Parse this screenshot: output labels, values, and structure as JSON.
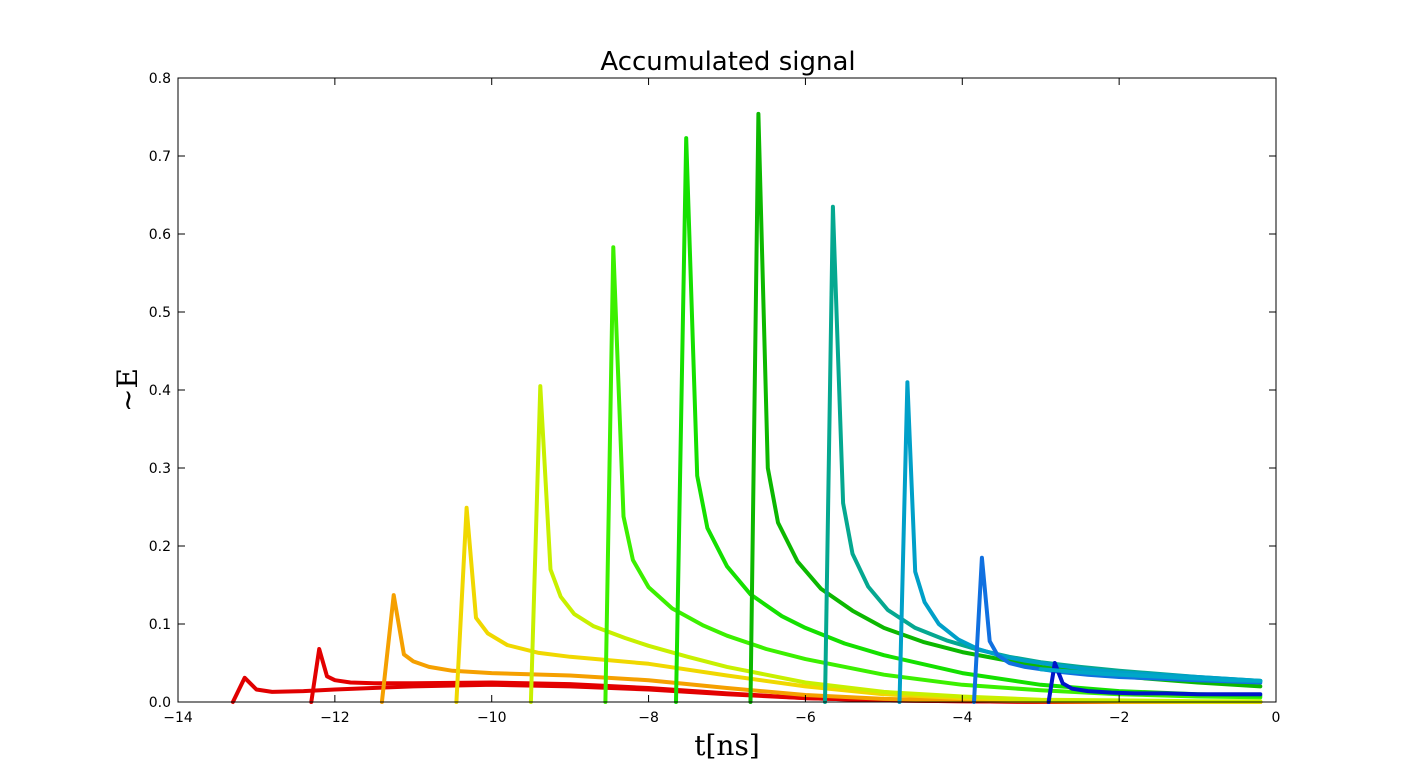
{
  "chart_data": {
    "type": "line",
    "title": "Accumulated signal",
    "xlabel": "t[ns]",
    "ylabel": "~E",
    "xlim": [
      -14,
      0
    ],
    "ylim": [
      0,
      0.8
    ],
    "grid": false,
    "x_ticks": [
      "−14",
      "−12",
      "−10",
      "−8",
      "−6",
      "−4",
      "−2",
      "0"
    ],
    "y_ticks": [
      "0.0",
      "0.1",
      "0.2",
      "0.3",
      "0.4",
      "0.5",
      "0.6",
      "0.7",
      "0.8"
    ],
    "series": [
      {
        "color": "#e00000",
        "x": [
          -13.3,
          -13.15,
          -13.0,
          -12.8,
          -12.4,
          -12.0,
          -11.0,
          -10.0,
          -9.0,
          -8.0,
          -7.0,
          -6.0,
          -5.0,
          -4.0,
          -3.0,
          -2.0,
          -1.0,
          -0.2
        ],
        "y": [
          0.0,
          0.031,
          0.016,
          0.013,
          0.014,
          0.016,
          0.02,
          0.022,
          0.02,
          0.016,
          0.01,
          0.005,
          0.002,
          0.001,
          0.0,
          0.0,
          0.0,
          0.0
        ]
      },
      {
        "color": "#e30000",
        "x": [
          -12.3,
          -12.2,
          -12.1,
          -12.0,
          -11.8,
          -11.5,
          -11.0,
          -10.0,
          -9.0,
          -8.0,
          -7.0,
          -6.0,
          -5.0,
          -4.0,
          -3.0,
          -2.0,
          -1.0,
          -0.2
        ],
        "y": [
          0.0,
          0.068,
          0.033,
          0.028,
          0.025,
          0.024,
          0.024,
          0.025,
          0.023,
          0.018,
          0.011,
          0.005,
          0.002,
          0.001,
          0.0,
          0.0,
          0.0,
          0.0
        ]
      },
      {
        "color": "#f5a000",
        "x": [
          -11.4,
          -11.25,
          -11.12,
          -11.0,
          -10.8,
          -10.5,
          -10.0,
          -9.0,
          -8.0,
          -7.0,
          -6.0,
          -5.0,
          -4.0,
          -3.0,
          -2.0,
          -1.0,
          -0.2
        ],
        "y": [
          0.0,
          0.137,
          0.061,
          0.052,
          0.045,
          0.04,
          0.037,
          0.034,
          0.028,
          0.018,
          0.009,
          0.004,
          0.002,
          0.001,
          0.0,
          0.0,
          0.0
        ]
      },
      {
        "color": "#f0d800",
        "x": [
          -10.45,
          -10.32,
          -10.2,
          -10.05,
          -9.8,
          -9.4,
          -9.0,
          -8.0,
          -7.0,
          -6.0,
          -5.0,
          -4.0,
          -3.0,
          -2.0,
          -1.0,
          -0.2
        ],
        "y": [
          0.0,
          0.249,
          0.108,
          0.088,
          0.073,
          0.063,
          0.058,
          0.049,
          0.034,
          0.02,
          0.01,
          0.005,
          0.002,
          0.001,
          0.0,
          0.0
        ]
      },
      {
        "color": "#c8f000",
        "x": [
          -9.5,
          -9.38,
          -9.25,
          -9.12,
          -8.95,
          -8.7,
          -8.3,
          -8.0,
          -7.5,
          -7.0,
          -6.0,
          -5.0,
          -4.0,
          -3.0,
          -2.0,
          -1.0,
          -0.2
        ],
        "y": [
          0.0,
          0.405,
          0.17,
          0.135,
          0.113,
          0.097,
          0.082,
          0.072,
          0.058,
          0.045,
          0.025,
          0.013,
          0.007,
          0.003,
          0.002,
          0.001,
          0.001
        ]
      },
      {
        "color": "#3cf000",
        "x": [
          -8.55,
          -8.45,
          -8.32,
          -8.2,
          -8.0,
          -7.7,
          -7.3,
          -7.0,
          -6.5,
          -6.0,
          -5.0,
          -4.0,
          -3.0,
          -2.0,
          -1.0,
          -0.2
        ],
        "y": [
          0.0,
          0.583,
          0.238,
          0.182,
          0.147,
          0.12,
          0.098,
          0.085,
          0.068,
          0.055,
          0.035,
          0.022,
          0.015,
          0.01,
          0.007,
          0.006
        ]
      },
      {
        "color": "#14e000",
        "x": [
          -7.65,
          -7.52,
          -7.38,
          -7.25,
          -7.0,
          -6.7,
          -6.3,
          -6.0,
          -5.5,
          -5.0,
          -4.0,
          -3.0,
          -2.0,
          -1.0,
          -0.2
        ],
        "y": [
          0.0,
          0.723,
          0.29,
          0.223,
          0.174,
          0.138,
          0.11,
          0.095,
          0.075,
          0.06,
          0.037,
          0.022,
          0.014,
          0.01,
          0.008
        ]
      },
      {
        "color": "#0cb800",
        "x": [
          -6.7,
          -6.6,
          -6.48,
          -6.35,
          -6.1,
          -5.8,
          -5.4,
          -5.0,
          -4.5,
          -4.0,
          -3.0,
          -2.0,
          -1.0,
          -0.2
        ],
        "y": [
          0.0,
          0.754,
          0.3,
          0.23,
          0.18,
          0.145,
          0.117,
          0.095,
          0.077,
          0.064,
          0.045,
          0.033,
          0.025,
          0.02
        ]
      },
      {
        "color": "#05a890",
        "x": [
          -5.75,
          -5.65,
          -5.52,
          -5.4,
          -5.2,
          -4.95,
          -4.6,
          -4.2,
          -3.8,
          -3.4,
          -3.0,
          -2.5,
          -2.0,
          -1.0,
          -0.2
        ],
        "y": [
          0.0,
          0.635,
          0.255,
          0.19,
          0.148,
          0.118,
          0.095,
          0.079,
          0.067,
          0.058,
          0.051,
          0.045,
          0.04,
          0.032,
          0.027
        ]
      },
      {
        "color": "#00a0c8",
        "x": [
          -4.8,
          -4.7,
          -4.6,
          -4.48,
          -4.3,
          -4.05,
          -3.8,
          -3.5,
          -3.2,
          -2.8,
          -2.4,
          -2.0,
          -1.0,
          -0.2
        ],
        "y": [
          0.0,
          0.41,
          0.167,
          0.128,
          0.1,
          0.08,
          0.068,
          0.059,
          0.053,
          0.047,
          0.042,
          0.038,
          0.032,
          0.027
        ]
      },
      {
        "color": "#1070e0",
        "x": [
          -3.85,
          -3.75,
          -3.65,
          -3.55,
          -3.4,
          -3.2,
          -3.0,
          -2.7,
          -2.4,
          -2.0,
          -1.0,
          -0.2
        ],
        "y": [
          0.0,
          0.185,
          0.078,
          0.06,
          0.05,
          0.045,
          0.042,
          0.038,
          0.035,
          0.032,
          0.028,
          0.025
        ]
      },
      {
        "color": "#0014c8",
        "x": [
          -2.9,
          -2.82,
          -2.72,
          -2.6,
          -2.4,
          -2.1,
          -1.8,
          -1.4,
          -1.0,
          -0.6,
          -0.2
        ],
        "y": [
          0.0,
          0.05,
          0.024,
          0.017,
          0.014,
          0.012,
          0.011,
          0.011,
          0.01,
          0.01,
          0.01
        ]
      },
      {
        "color": "#00a8c8",
        "x": [
          -3.0,
          -2.6,
          -2.2,
          -1.8,
          -1.4,
          -1.0,
          -0.6,
          -0.2
        ],
        "y": [
          0.042,
          0.039,
          0.036,
          0.034,
          0.032,
          0.03,
          0.028,
          0.027
        ]
      }
    ]
  }
}
